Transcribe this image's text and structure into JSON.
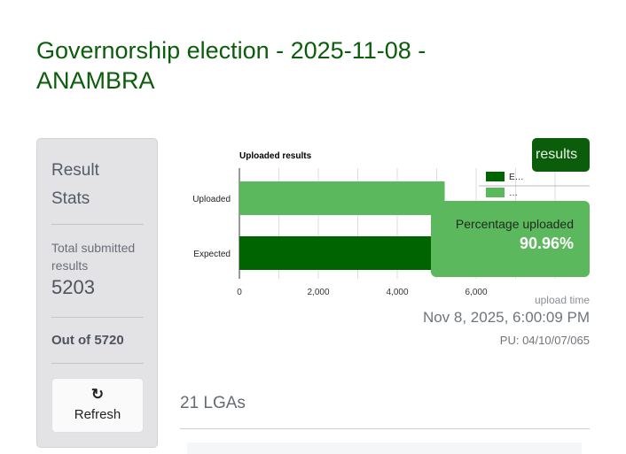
{
  "page_title": "Governorship election - 2025-11-08 - ANAMBRA",
  "stats": {
    "heading": "Result Stats",
    "total_label": "Total submitted results",
    "total_value": "5203",
    "out_of": "Out of 5720",
    "refresh_label": "Refresh",
    "refresh_icon": "refresh-icon"
  },
  "results_button": "results",
  "percentage": {
    "label": "Percentage uploaded",
    "value": "90.96%"
  },
  "upload": {
    "label": "upload time",
    "time": "Nov 8, 2025, 6:00:09 PM",
    "pu": "PU: 04/10/07/065"
  },
  "lgas": {
    "title": "21 LGAs"
  },
  "colors": {
    "brand": "#0b5d0b",
    "expected": "#006400",
    "uploaded": "#5cb85c"
  },
  "chart_data": {
    "type": "bar",
    "orientation": "horizontal",
    "title": "Uploaded results",
    "categories": [
      "Uploaded",
      "Expected"
    ],
    "values": [
      5203,
      5720
    ],
    "colors": [
      "#5cb85c",
      "#006400"
    ],
    "xlim": [
      0,
      8000
    ],
    "xticks": [
      "0",
      "2,000",
      "4,000",
      "6,000"
    ],
    "grid": true,
    "legend": {
      "placement": "top-right",
      "entries": [
        "E…",
        "…"
      ]
    }
  }
}
